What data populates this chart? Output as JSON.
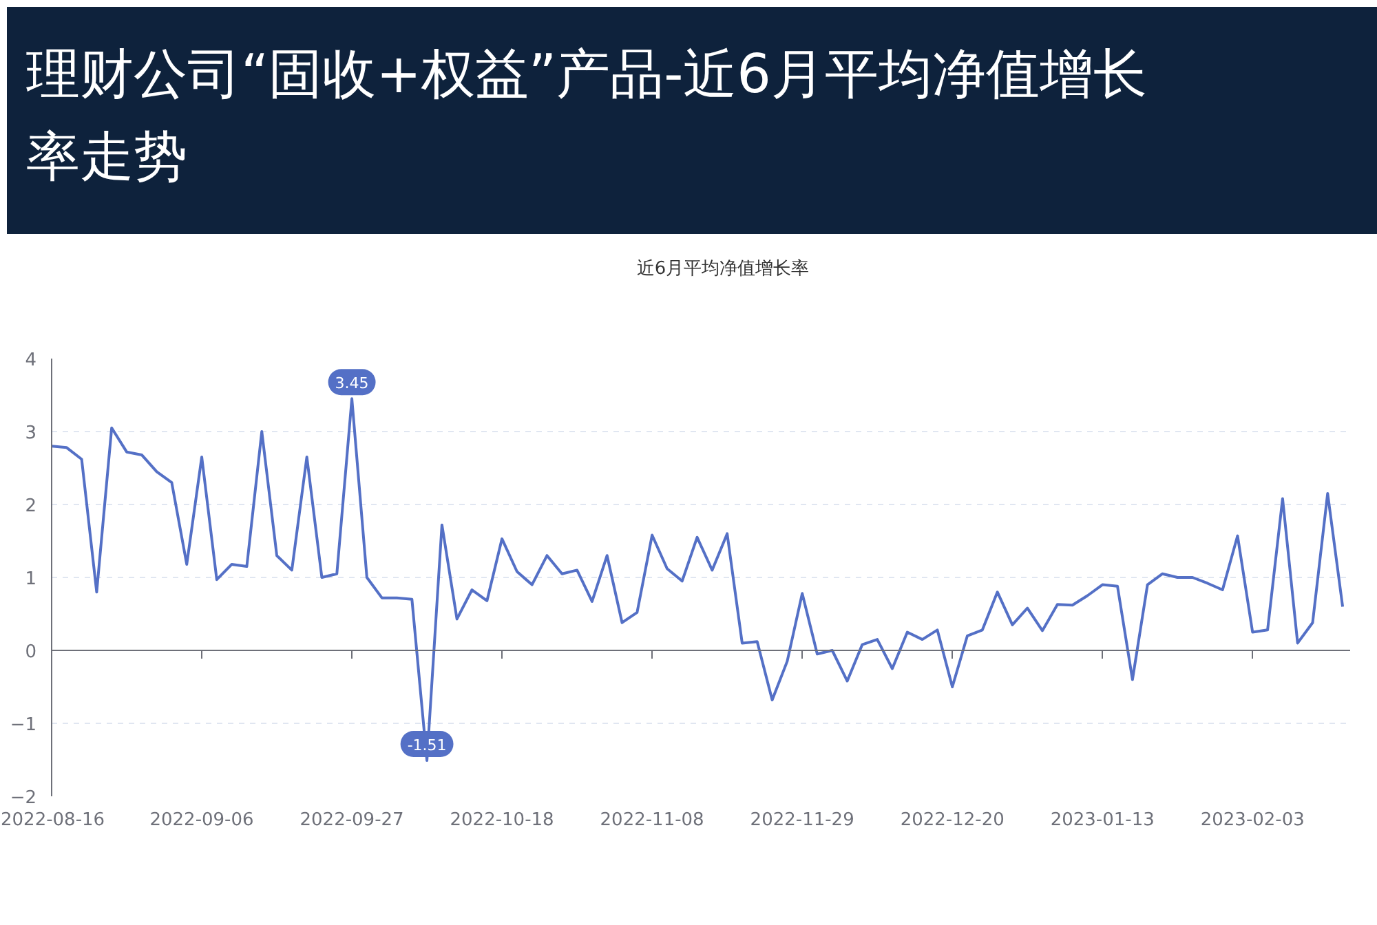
{
  "chart_data": {
    "type": "line",
    "title": "理财公司“固收+权益”产品-近6月平均净值增长率走势",
    "categories": [
      "2022-08-16",
      null,
      null,
      null,
      null,
      null,
      null,
      null,
      null,
      null,
      "2022-09-06",
      null,
      null,
      null,
      null,
      null,
      null,
      null,
      null,
      null,
      "2022-09-27",
      null,
      null,
      null,
      null,
      null,
      null,
      null,
      null,
      null,
      "2022-10-18",
      null,
      null,
      null,
      null,
      null,
      null,
      null,
      null,
      null,
      "2022-11-08",
      null,
      null,
      null,
      null,
      null,
      null,
      null,
      null,
      null,
      "2022-11-29",
      null,
      null,
      null,
      null,
      null,
      null,
      null,
      null,
      null,
      "2022-12-20",
      null,
      null,
      null,
      null,
      null,
      null,
      null,
      null,
      null,
      "2023-01-13",
      null,
      null,
      null,
      null,
      null,
      null,
      null,
      null,
      null,
      "2023-02-03",
      null,
      null,
      null,
      null,
      null,
      null
    ],
    "series": [
      {
        "name": "近6月平均净值增长率",
        "color": "#5470c6",
        "values": [
          2.8,
          2.78,
          2.62,
          0.8,
          3.05,
          2.72,
          2.68,
          2.45,
          2.3,
          1.18,
          2.65,
          0.97,
          1.18,
          1.15,
          3.0,
          1.3,
          1.1,
          2.65,
          1.0,
          1.05,
          3.45,
          1.0,
          0.72,
          0.72,
          0.7,
          -1.51,
          1.72,
          0.43,
          0.83,
          0.68,
          1.53,
          1.08,
          0.9,
          1.3,
          1.05,
          1.1,
          0.67,
          1.3,
          0.38,
          0.52,
          1.58,
          1.12,
          0.95,
          1.55,
          1.1,
          1.6,
          0.1,
          0.12,
          -0.68,
          -0.15,
          0.78,
          -0.05,
          0.0,
          -0.42,
          0.08,
          0.15,
          -0.25,
          0.25,
          0.15,
          0.28,
          -0.5,
          0.2,
          0.28,
          0.8,
          0.35,
          0.58,
          0.27,
          0.63,
          0.62,
          0.75,
          0.9,
          0.88,
          -0.4,
          0.9,
          1.05,
          1.0,
          1.0,
          0.92,
          0.83,
          1.57,
          0.25,
          0.28,
          2.08,
          0.1,
          0.38,
          2.15,
          0.6
        ]
      }
    ],
    "ylim": [
      -2,
      4
    ],
    "yticks": [
      -2,
      -1,
      0,
      1,
      2,
      3,
      4
    ],
    "grid": "y",
    "legend": "top",
    "line_style": "solid",
    "annotations": [
      {
        "text": "3.45",
        "y": 3.45
      },
      {
        "text": "-1.51",
        "y": -1.51
      }
    ]
  }
}
